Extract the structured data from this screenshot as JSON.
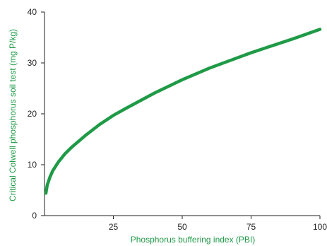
{
  "chart_data": {
    "type": "line",
    "title": "",
    "xlabel": "Phosphorus buffering index (PBI)",
    "ylabel": "Critical Colwell phosphorus soil test (mg P/kg)",
    "xlim": [
      0,
      100
    ],
    "ylim": [
      0,
      40
    ],
    "xticks": [
      25,
      50,
      75,
      100
    ],
    "yticks": [
      0,
      10,
      20,
      30,
      40
    ],
    "grid": false,
    "legend": "none",
    "series": [
      {
        "x": [
          0.5,
          1,
          2,
          3,
          5,
          7.5,
          10,
          15,
          20,
          25,
          30,
          40,
          50,
          60,
          70,
          75,
          80,
          90,
          100
        ],
        "y": [
          4.4,
          6.0,
          7.6,
          8.8,
          10.5,
          12.2,
          13.5,
          15.8,
          17.9,
          19.7,
          21.2,
          24.1,
          26.7,
          29.0,
          31.0,
          32.0,
          32.9,
          34.7,
          36.6
        ]
      }
    ],
    "colors": {
      "line": "#1f9a47",
      "axis_title": "#1f9a47",
      "axis": "#222222"
    }
  }
}
